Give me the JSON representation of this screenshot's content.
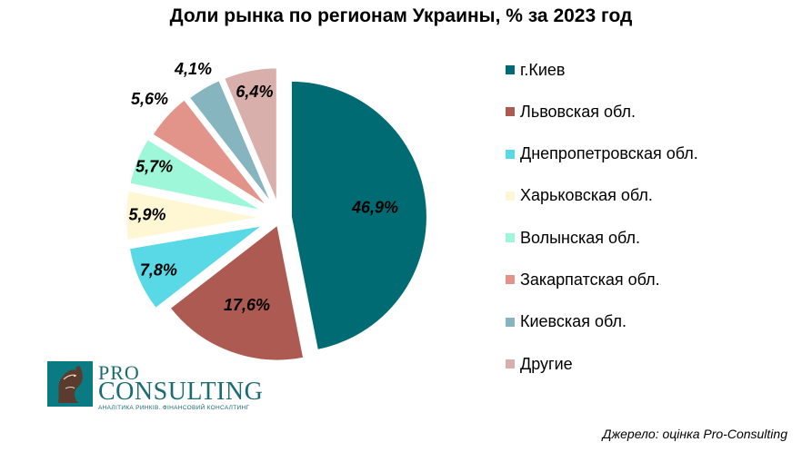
{
  "chart_data": {
    "type": "pie",
    "title": "Доли рынка по регионам Украины, % за 2023 год",
    "slices": [
      {
        "label": "г.Киев",
        "value": 46.9,
        "display": "46,9%",
        "color": "#006b73"
      },
      {
        "label": "Львовская обл.",
        "value": 17.6,
        "display": "17,6%",
        "color": "#ad5a52"
      },
      {
        "label": "Днепропетровская обл.",
        "value": 7.8,
        "display": "7,8%",
        "color": "#59d9e6"
      },
      {
        "label": "Харьковская обл.",
        "value": 5.9,
        "display": "5,9%",
        "color": "#fff7d4"
      },
      {
        "label": "Волынская обл.",
        "value": 5.7,
        "display": "5,7%",
        "color": "#9ef7d8"
      },
      {
        "label": "Закарпатская обл.",
        "value": 5.6,
        "display": "5,6%",
        "color": "#e2948a"
      },
      {
        "label": "Киевская обл.",
        "value": 4.1,
        "display": "4,1%",
        "color": "#86b5c0"
      },
      {
        "label": "Другие",
        "value": 6.4,
        "display": "6,4%",
        "color": "#d8afaa"
      }
    ],
    "legend_position": "right"
  },
  "logo": {
    "pro": "PRO",
    "consulting": "CONSULTING",
    "tagline": "АНАЛІТИКА РИНКІВ. ФІНАНСОВИЙ КОНСАЛТИНГ"
  },
  "source": "Джерело: оцінка Pro-Consulting"
}
